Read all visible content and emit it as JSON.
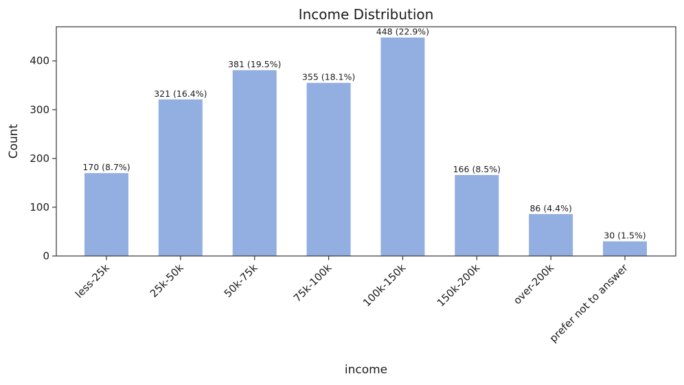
{
  "chart_data": {
    "type": "bar",
    "title": "Income Distribution",
    "xlabel": "income",
    "ylabel": "Count",
    "categories": [
      "less-25k",
      "25k-50k",
      "50k-75k",
      "75k-100k",
      "100k-150k",
      "150k-200k",
      "over-200k",
      "prefer not to answer"
    ],
    "values": [
      170,
      321,
      381,
      355,
      448,
      166,
      86,
      30
    ],
    "data_labels": [
      "170 (8.7%)",
      "321 (16.4%)",
      "381 (19.5%)",
      "355 (18.1%)",
      "448 (22.9%)",
      "166 (8.5%)",
      "86 (4.4%)",
      "30 (1.5%)"
    ],
    "ylim": [
      0,
      470
    ],
    "yticks": [
      0,
      100,
      200,
      300,
      400
    ],
    "grid": false,
    "bar_color": "#93aee0"
  }
}
